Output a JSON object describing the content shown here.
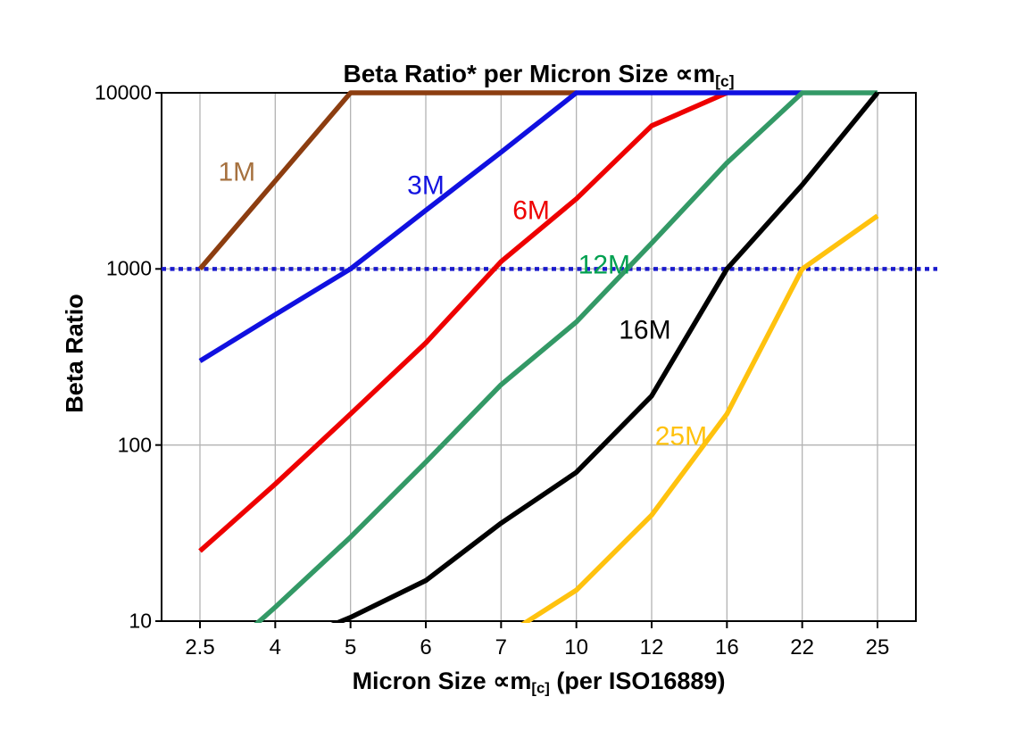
{
  "title": {
    "prefix": "Beta Ratio* per Micron Size ",
    "symbol": "∝m",
    "sub": "[c]"
  },
  "axes": {
    "y": {
      "label": "Beta Ratio",
      "scale": "log",
      "ticks": [
        "10000",
        "1000",
        "100",
        "10"
      ]
    },
    "x": {
      "label_prefix": "Micron Size ",
      "label_symbol": "∝m",
      "label_sub": "[c]",
      "label_suffix": " (per ISO16889)",
      "ticks": [
        "2.5",
        "4",
        "5",
        "6",
        "7",
        "10",
        "12",
        "16",
        "22",
        "25"
      ]
    }
  },
  "reference_line": {
    "value": 1000,
    "color": "#1a1acc",
    "style": "dotted"
  },
  "chart_data": {
    "type": "line",
    "title": "Beta Ratio* per Micron Size ∝m[c]",
    "xlabel": "Micron Size ∝m[c] (per ISO16889)",
    "ylabel": "Beta Ratio",
    "x_categories": [
      2.5,
      4,
      5,
      6,
      7,
      10,
      12,
      16,
      22,
      25
    ],
    "y_scale": "log",
    "ylim": [
      10,
      10000
    ],
    "grid": true,
    "series": [
      {
        "name": "1M",
        "color": "#8c3d10",
        "values": [
          1000,
          3160,
          10000,
          10000,
          10000,
          10000,
          null,
          null,
          null,
          null
        ]
      },
      {
        "name": "6M",
        "color": "#ee0000",
        "values": [
          25,
          60,
          150,
          380,
          1100,
          2500,
          6500,
          10000,
          null,
          null
        ]
      },
      {
        "name": "3M",
        "color": "#1010e0",
        "values": [
          300,
          550,
          1000,
          2150,
          4600,
          10000,
          10000,
          10000,
          10000,
          null
        ]
      },
      {
        "name": "12M",
        "color": "#339966",
        "values": [
          5,
          12,
          30,
          80,
          220,
          500,
          1400,
          4000,
          10000,
          10000
        ]
      },
      {
        "name": "16M",
        "color": "#000000",
        "values": [
          null,
          7,
          10.5,
          17,
          36,
          70,
          190,
          1000,
          3000,
          10000
        ]
      },
      {
        "name": "25M",
        "color": "#ffc20e",
        "values": [
          null,
          null,
          null,
          null,
          8,
          15,
          40,
          150,
          1000,
          2000
        ]
      }
    ],
    "curve_labels": [
      {
        "text": "1M",
        "ci": 0.49,
        "v": 3540,
        "color": "#a6713f"
      },
      {
        "text": "3M",
        "ci": 3.0,
        "v": 2970,
        "color": "#1414e0"
      },
      {
        "text": "6M",
        "ci": 4.4,
        "v": 2140,
        "color": "#ee0000"
      },
      {
        "text": "12M",
        "ci": 5.37,
        "v": 1050,
        "color": "#00a050"
      },
      {
        "text": "16M",
        "ci": 5.91,
        "v": 450,
        "color": "#000000"
      },
      {
        "text": "25M",
        "ci": 6.39,
        "v": 112,
        "color": "#ffc20e"
      }
    ]
  }
}
